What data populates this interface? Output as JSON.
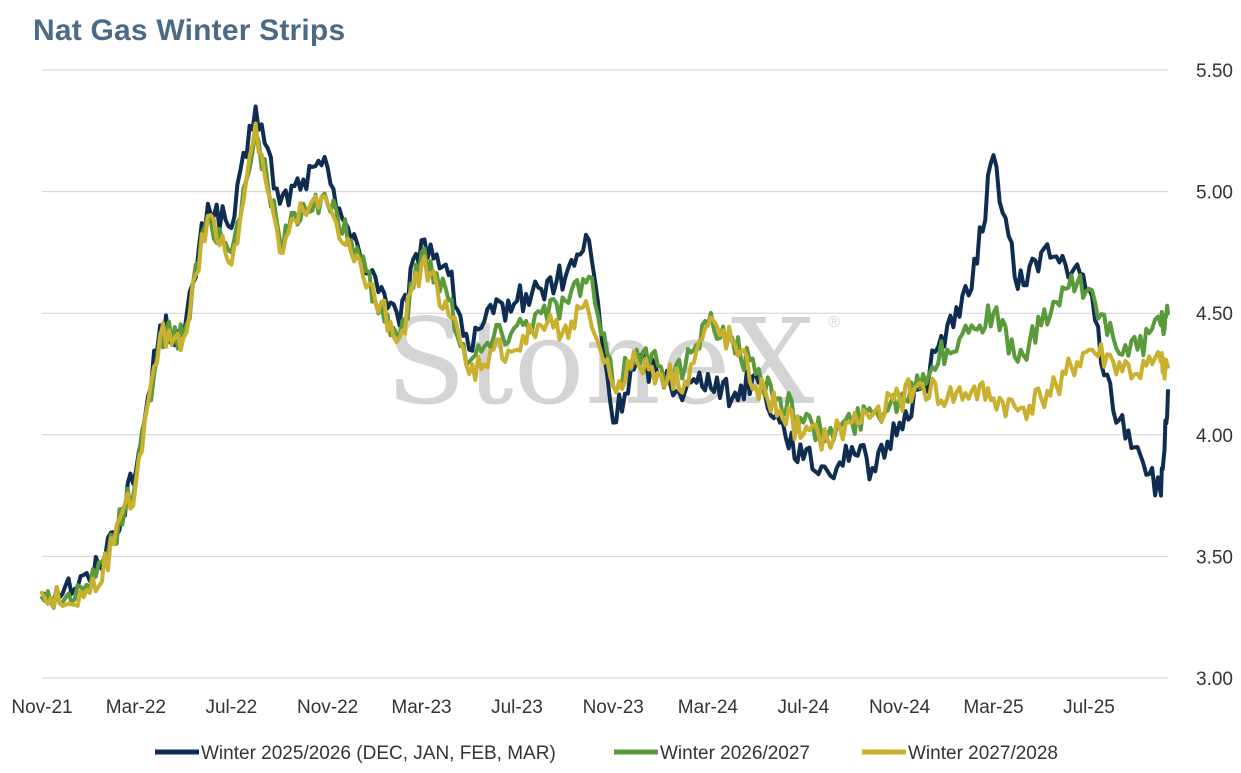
{
  "chart_data": {
    "type": "line",
    "title": "Nat Gas Winter Strips",
    "watermark": "StoneX",
    "watermark_mark": "®",
    "xlabel": "",
    "ylabel": "",
    "ylim": [
      3.0,
      5.5
    ],
    "y_ticks": [
      "3.00",
      "3.50",
      "4.00",
      "4.50",
      "5.00",
      "5.50"
    ],
    "y_axis_side": "right",
    "x_ticks": [
      "Nov-21",
      "Mar-22",
      "Jul-22",
      "Nov-22",
      "Mar-23",
      "Jul-23",
      "Nov-23",
      "Mar-24",
      "Jul-24",
      "Nov-24",
      "Mar-25",
      "Jul-25"
    ],
    "grid": "horizontal",
    "legend_position": "bottom",
    "x_range": [
      "2021-11-01",
      "2025-10-10"
    ],
    "x": [
      "2021-11-01",
      "2021-12-01",
      "2022-01-01",
      "2022-02-01",
      "2022-03-01",
      "2022-04-01",
      "2022-05-01",
      "2022-06-01",
      "2022-07-01",
      "2022-08-01",
      "2022-09-01",
      "2022-10-01",
      "2022-11-01",
      "2022-12-01",
      "2023-01-01",
      "2023-02-01",
      "2023-03-01",
      "2023-04-01",
      "2023-05-01",
      "2023-06-01",
      "2023-07-01",
      "2023-08-01",
      "2023-09-01",
      "2023-10-01",
      "2023-11-01",
      "2023-12-01",
      "2024-01-01",
      "2024-02-01",
      "2024-03-01",
      "2024-04-01",
      "2024-05-01",
      "2024-06-01",
      "2024-07-01",
      "2024-08-01",
      "2024-09-01",
      "2024-10-01",
      "2024-11-01",
      "2024-12-01",
      "2025-01-01",
      "2025-02-01",
      "2025-03-01",
      "2025-04-01",
      "2025-05-01",
      "2025-06-01",
      "2025-07-01",
      "2025-08-01",
      "2025-09-01",
      "2025-10-01",
      "2025-10-10"
    ],
    "series": [
      {
        "name": "Winter 2025/2026 (DEC, JAN, FEB, MAR)",
        "color": "#0f2d50",
        "values": [
          3.35,
          3.38,
          3.4,
          3.6,
          3.85,
          4.45,
          4.4,
          4.95,
          4.85,
          5.35,
          4.95,
          5.05,
          5.1,
          4.8,
          4.65,
          4.45,
          4.8,
          4.7,
          4.35,
          4.5,
          4.55,
          4.6,
          4.65,
          4.8,
          4.05,
          4.3,
          4.25,
          4.18,
          4.25,
          4.15,
          4.25,
          4.05,
          3.9,
          3.85,
          3.95,
          3.85,
          4.05,
          4.2,
          4.45,
          4.6,
          5.15,
          4.6,
          4.75,
          4.7,
          4.6,
          4.1,
          3.95,
          3.75,
          4.18
        ]
      },
      {
        "name": "Winter 2026/2027",
        "color": "#5a9a3a",
        "values": [
          3.33,
          3.33,
          3.36,
          3.58,
          3.82,
          4.42,
          4.4,
          4.9,
          4.75,
          5.25,
          4.8,
          4.95,
          4.95,
          4.8,
          4.55,
          4.4,
          4.75,
          4.6,
          4.3,
          4.4,
          4.45,
          4.5,
          4.55,
          4.65,
          4.2,
          4.35,
          4.28,
          4.28,
          4.45,
          4.4,
          4.25,
          4.15,
          4.05,
          4.0,
          4.05,
          4.1,
          4.15,
          4.25,
          4.35,
          4.45,
          4.5,
          4.3,
          4.45,
          4.6,
          4.6,
          4.4,
          4.35,
          4.45,
          4.5
        ]
      },
      {
        "name": "Winter 2027/2028",
        "color": "#c9b02f",
        "values": [
          3.35,
          3.3,
          3.35,
          3.55,
          3.8,
          4.4,
          4.4,
          4.9,
          4.7,
          5.28,
          4.75,
          4.92,
          4.95,
          4.75,
          4.55,
          4.4,
          4.7,
          4.55,
          4.25,
          4.35,
          4.35,
          4.45,
          4.45,
          4.5,
          4.2,
          4.3,
          4.25,
          4.22,
          4.45,
          4.38,
          4.2,
          4.1,
          4.0,
          3.98,
          4.05,
          4.1,
          4.15,
          4.2,
          4.15,
          4.18,
          4.15,
          4.1,
          4.15,
          4.25,
          4.35,
          4.3,
          4.25,
          4.3,
          4.28
        ]
      }
    ]
  }
}
